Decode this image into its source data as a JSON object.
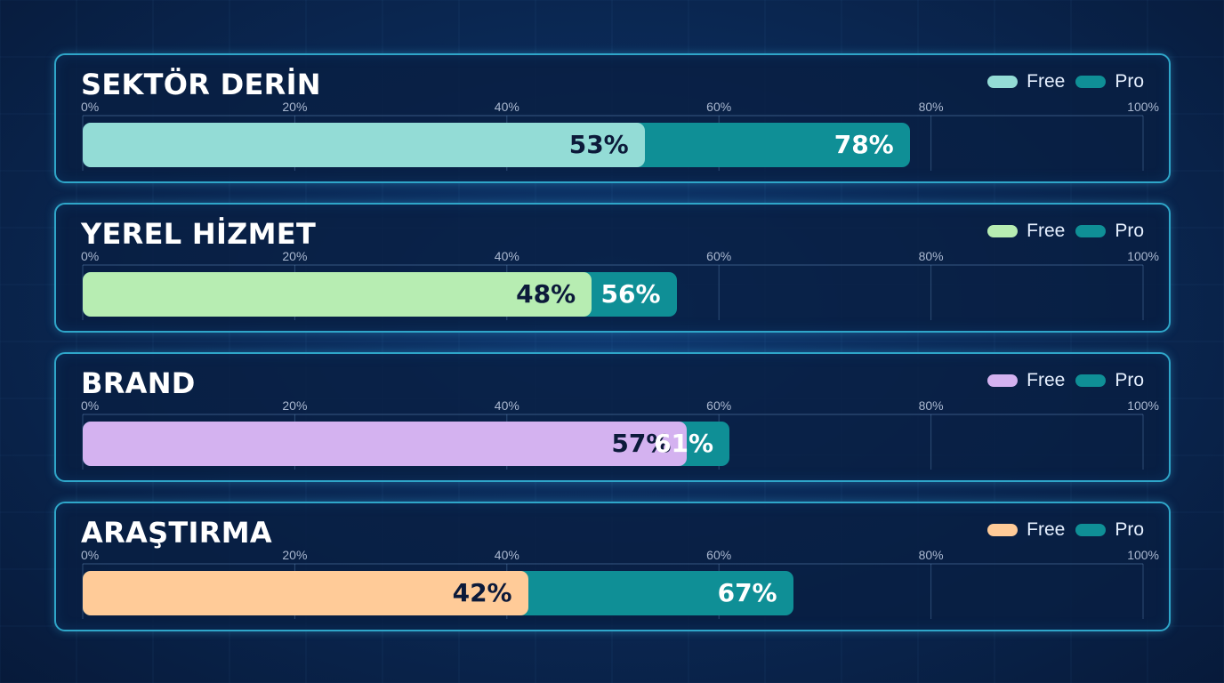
{
  "legend": {
    "free_label": "Free",
    "pro_label": "Pro"
  },
  "pro_color": "#0f8f96",
  "chart_data": {
    "type": "bar",
    "orientation": "horizontal",
    "xlim": [
      0,
      100
    ],
    "ticks": [
      "0%",
      "20%",
      "40%",
      "60%",
      "80%",
      "100%"
    ],
    "categories": [
      "SEKTÖR DERİN",
      "YEREL HİZMET",
      "BRAND",
      "ARAŞTIRMA"
    ],
    "series": [
      {
        "name": "Free",
        "values": [
          53,
          48,
          57,
          42
        ],
        "labels": [
          "53%",
          "48%",
          "57%",
          "42%"
        ],
        "colors": [
          "#93dcd6",
          "#b7edb2",
          "#d4b2f0",
          "#ffcb98"
        ]
      },
      {
        "name": "Pro",
        "values": [
          78,
          56,
          61,
          67
        ],
        "labels": [
          "78%",
          "56%",
          "61%",
          "67%"
        ],
        "color": "#0f8f96"
      }
    ],
    "grid": true,
    "legend_position": "top-right"
  }
}
